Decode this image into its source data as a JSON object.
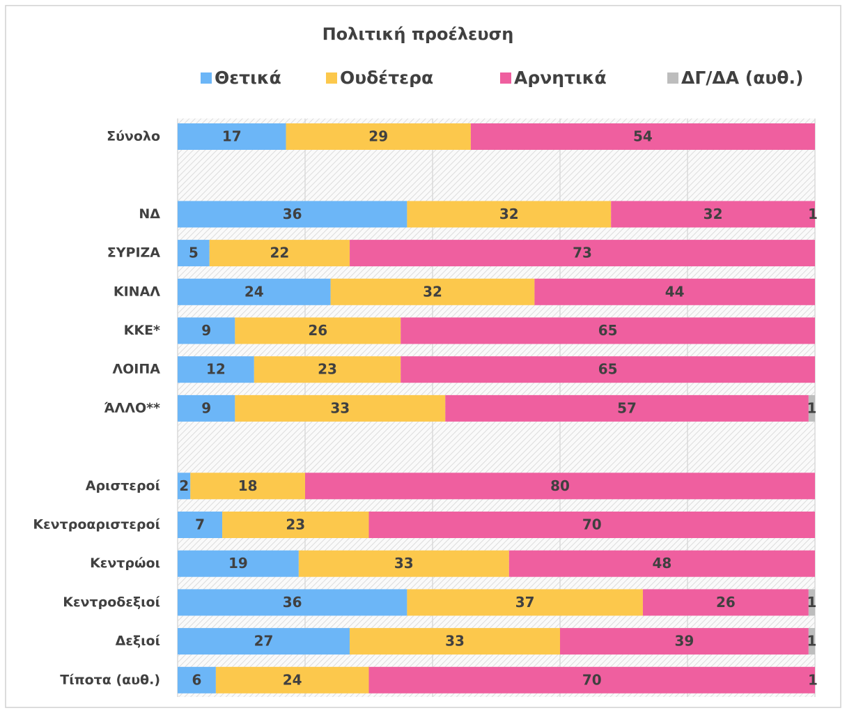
{
  "chart_data": {
    "type": "stacked_barh",
    "title": "Πολιτική προέλευση",
    "legend": "top",
    "categories": [
      "Σύνολο",
      null,
      "ΝΔ",
      "ΣΥΡΙΖΑ",
      "ΚΙΝΑΛ",
      "ΚΚΕ*",
      "ΛΟΙΠΑ",
      "ΆΛΛΟ**",
      null,
      "Αριστεροί",
      "Κεντροαριστεροί",
      "Κεντρώοι",
      "Κεντροδεξιοί",
      "Δεξιοί",
      "Τίποτα (αυθ.)"
    ],
    "series": [
      {
        "name": "Θετικά",
        "color": "#6cb6f7",
        "values": [
          17,
          null,
          36,
          5,
          24,
          9,
          12,
          9,
          null,
          2,
          7,
          19,
          36,
          27,
          6
        ]
      },
      {
        "name": "Ουδέτερα",
        "color": "#fcc84c",
        "values": [
          29,
          null,
          32,
          22,
          32,
          26,
          23,
          33,
          null,
          18,
          23,
          33,
          37,
          33,
          24
        ]
      },
      {
        "name": "Αρνητικά",
        "color": "#ef5f9f",
        "values": [
          54,
          null,
          32,
          73,
          44,
          65,
          65,
          57,
          null,
          80,
          70,
          48,
          26,
          39,
          70
        ]
      },
      {
        "name": "ΔΓ/ΔΑ (αυθ.)",
        "color": "#bdbdbd",
        "values": [
          null,
          null,
          1,
          null,
          null,
          null,
          null,
          1,
          null,
          null,
          null,
          null,
          1,
          1,
          1
        ]
      }
    ],
    "xlim": [
      0,
      100
    ],
    "xticks": [
      0,
      20,
      40,
      60,
      80,
      100
    ],
    "grid": true
  }
}
